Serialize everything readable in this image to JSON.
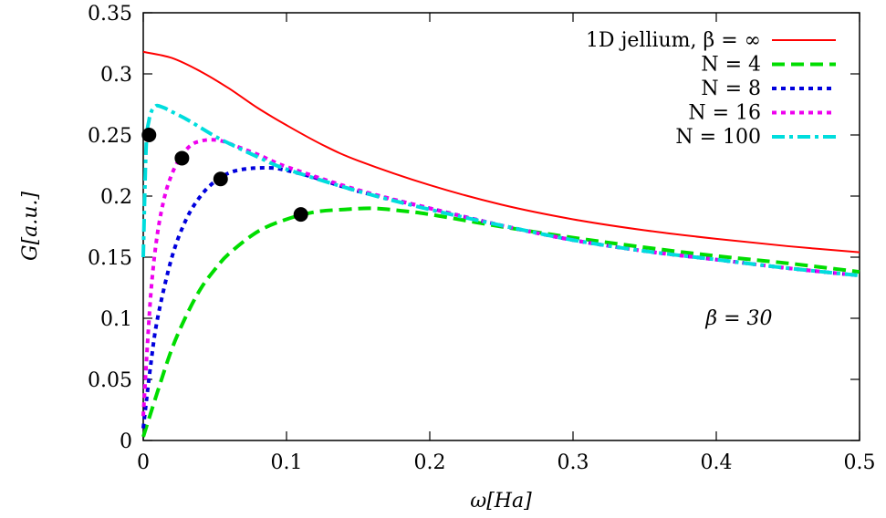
{
  "chart_data": {
    "type": "line",
    "title": "",
    "xlabel": "ω[Ha]",
    "ylabel": "G[a.u.]",
    "xlim": [
      0,
      0.5
    ],
    "ylim": [
      0,
      0.35
    ],
    "grid": false,
    "legend_position": "top-right",
    "x_ticks": [
      0,
      0.1,
      0.2,
      0.3,
      0.4,
      0.5
    ],
    "x_tick_labels": [
      "0",
      "0.1",
      "0.2",
      "0.3",
      "0.4",
      "0.5"
    ],
    "y_ticks": [
      0,
      0.05,
      0.1,
      0.15,
      0.2,
      0.25,
      0.3,
      0.35
    ],
    "y_tick_labels": [
      "0",
      "0.05",
      "0.1",
      "0.15",
      "0.2",
      "0.25",
      "0.3",
      "0.35"
    ],
    "annotation": "β = 30",
    "series": [
      {
        "name": "1D jellium, β = ∞",
        "color": "#ff0000",
        "style": "solid",
        "x": [
          0,
          0.02,
          0.04,
          0.06,
          0.08,
          0.1,
          0.125,
          0.15,
          0.2,
          0.25,
          0.3,
          0.35,
          0.4,
          0.45,
          0.5
        ],
        "y": [
          0.318,
          0.313,
          0.302,
          0.288,
          0.272,
          0.258,
          0.242,
          0.229,
          0.209,
          0.193,
          0.181,
          0.172,
          0.165,
          0.159,
          0.154
        ]
      },
      {
        "name": "N = 4",
        "color": "#00dd00",
        "style": "dashed",
        "x": [
          0,
          0.01,
          0.02,
          0.03,
          0.04,
          0.05,
          0.06,
          0.08,
          0.1,
          0.12,
          0.14,
          0.16,
          0.18,
          0.2,
          0.25,
          0.3,
          0.35,
          0.4,
          0.45,
          0.5
        ],
        "y": [
          0.003,
          0.04,
          0.075,
          0.102,
          0.124,
          0.14,
          0.153,
          0.171,
          0.181,
          0.187,
          0.189,
          0.19,
          0.188,
          0.185,
          0.175,
          0.166,
          0.158,
          0.151,
          0.145,
          0.138
        ]
      },
      {
        "name": "N = 8",
        "color": "#0000dd",
        "style": "dotted",
        "x": [
          0,
          0.005,
          0.01,
          0.02,
          0.03,
          0.04,
          0.05,
          0.06,
          0.07,
          0.08,
          0.09,
          0.1,
          0.12,
          0.15,
          0.2,
          0.25,
          0.3,
          0.35,
          0.4,
          0.45,
          0.5
        ],
        "y": [
          0.01,
          0.06,
          0.1,
          0.15,
          0.181,
          0.2,
          0.212,
          0.219,
          0.222,
          0.223,
          0.223,
          0.221,
          0.215,
          0.204,
          0.19,
          0.176,
          0.164,
          0.155,
          0.148,
          0.141,
          0.135
        ]
      },
      {
        "name": "N = 16",
        "color": "#ee00ee",
        "style": "dotted",
        "x": [
          0,
          0.003,
          0.006,
          0.01,
          0.015,
          0.02,
          0.025,
          0.03,
          0.035,
          0.04,
          0.045,
          0.05,
          0.055,
          0.06,
          0.08,
          0.1,
          0.15,
          0.2,
          0.25,
          0.3,
          0.35,
          0.4,
          0.45,
          0.5
        ],
        "y": [
          0.02,
          0.08,
          0.13,
          0.17,
          0.2,
          0.218,
          0.23,
          0.238,
          0.243,
          0.245,
          0.246,
          0.246,
          0.245,
          0.243,
          0.234,
          0.224,
          0.205,
          0.19,
          0.176,
          0.164,
          0.155,
          0.148,
          0.141,
          0.135
        ]
      },
      {
        "name": "N = 100",
        "color": "#00dddd",
        "style": "dashdot",
        "x": [
          0,
          0.002,
          0.004,
          0.006,
          0.008,
          0.01,
          0.015,
          0.02,
          0.03,
          0.04,
          0.05,
          0.06,
          0.08,
          0.1,
          0.15,
          0.2,
          0.25,
          0.3,
          0.35,
          0.4,
          0.45,
          0.5
        ],
        "y": [
          0.15,
          0.24,
          0.262,
          0.27,
          0.273,
          0.274,
          0.272,
          0.269,
          0.263,
          0.256,
          0.249,
          0.243,
          0.232,
          0.222,
          0.204,
          0.189,
          0.176,
          0.164,
          0.155,
          0.148,
          0.141,
          0.135
        ]
      }
    ],
    "markers": [
      {
        "series": "N = 100",
        "x": 0.004,
        "y": 0.25
      },
      {
        "series": "N = 16",
        "x": 0.027,
        "y": 0.231
      },
      {
        "series": "N = 8",
        "x": 0.054,
        "y": 0.214
      },
      {
        "series": "N = 4",
        "x": 0.11,
        "y": 0.185
      }
    ]
  }
}
